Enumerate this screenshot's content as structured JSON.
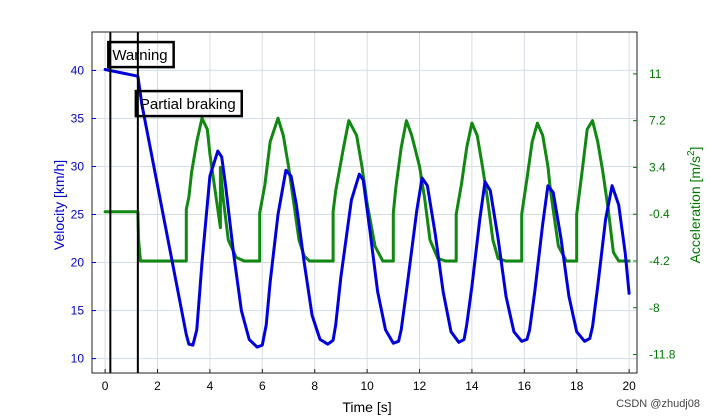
{
  "chart_data": {
    "type": "line",
    "xlabel": "Time [s]",
    "ylabel_left": "Velocity [km/h]",
    "ylabel_right_base": "Acceleration [m/s",
    "ylabel_right_sup": "2",
    "ylabel_right_tail": "]",
    "xlim": [
      -0.5,
      20.3
    ],
    "ylim_left": [
      8.5,
      44
    ],
    "ylim_right": [
      -13.3,
      14.4
    ],
    "xticks": [
      0,
      2,
      4,
      6,
      8,
      10,
      12,
      14,
      16,
      18,
      20
    ],
    "xtick_labels": [
      "0",
      "2",
      "4",
      "6",
      "8",
      "10",
      "12",
      "14",
      "16",
      "18",
      "20"
    ],
    "yticks_left": [
      10,
      15,
      20,
      25,
      30,
      35,
      40
    ],
    "ytick_labels_left": [
      "10",
      "15",
      "20",
      "25",
      "30",
      "35",
      "40"
    ],
    "yticks_right": [
      -11.8,
      -8,
      -4.2,
      -0.4,
      3.4,
      7.2,
      11
    ],
    "ytick_labels_right": [
      "-11.8",
      "-8",
      "-4.2",
      "-0.4",
      "3.4",
      "7.2",
      "11"
    ],
    "grid": true,
    "series": [
      {
        "name": "Velocity",
        "axis": "left",
        "color": "#0000dd",
        "x": [
          0,
          1.25,
          1.4,
          3.1,
          3.2,
          3.35,
          3.5,
          3.7,
          4.0,
          4.3,
          4.45,
          4.6,
          4.9,
          5.2,
          5.5,
          5.8,
          6.0,
          6.15,
          6.3,
          6.6,
          6.9,
          7.1,
          7.3,
          7.6,
          7.9,
          8.2,
          8.5,
          8.7,
          8.8,
          9.0,
          9.4,
          9.7,
          9.85,
          10.1,
          10.4,
          10.7,
          11.0,
          11.2,
          11.3,
          11.5,
          11.9,
          12.1,
          12.3,
          12.6,
          12.9,
          13.2,
          13.5,
          13.7,
          13.8,
          14.0,
          14.3,
          14.5,
          14.7,
          15.0,
          15.3,
          15.6,
          15.9,
          16.1,
          16.2,
          16.4,
          16.7,
          16.9,
          17.1,
          17.4,
          17.7,
          18.0,
          18.3,
          18.5,
          18.6,
          18.8,
          19.1,
          19.35,
          19.6,
          19.85,
          20.0
        ],
        "y": [
          40.1,
          39.4,
          36.5,
          12.5,
          11.5,
          11.4,
          13.0,
          20.0,
          29.0,
          31.6,
          31.0,
          28.0,
          21.0,
          15.0,
          12.0,
          11.2,
          11.4,
          13.5,
          18.0,
          25.0,
          29.6,
          29.0,
          26.0,
          20.0,
          14.5,
          12.0,
          11.5,
          11.9,
          13.5,
          18.5,
          26.5,
          29.2,
          28.6,
          23.5,
          17.0,
          13.0,
          11.6,
          11.8,
          13.0,
          17.0,
          25.5,
          28.8,
          28.0,
          23.0,
          17.0,
          12.8,
          11.7,
          12.0,
          13.5,
          17.5,
          24.5,
          28.4,
          27.5,
          22.5,
          16.5,
          12.8,
          11.8,
          12.0,
          13.0,
          17.0,
          24.0,
          28.0,
          27.3,
          22.5,
          16.5,
          12.8,
          11.8,
          12.1,
          13.3,
          17.5,
          24.5,
          28.0,
          26.0,
          21.0,
          16.8
        ]
      },
      {
        "name": "Acceleration",
        "axis": "right",
        "color": "#118811",
        "x": [
          0,
          1.25,
          1.28,
          1.35,
          1.4,
          3.1,
          3.1,
          3.2,
          3.3,
          3.5,
          3.7,
          3.9,
          4.0,
          4.1,
          4.3,
          4.4,
          4.4,
          4.5,
          4.7,
          5.0,
          5.3,
          5.9,
          5.9,
          6.1,
          6.3,
          6.6,
          6.8,
          7.0,
          7.2,
          7.4,
          7.6,
          7.8,
          8.1,
          8.4,
          8.7,
          8.7,
          8.8,
          9.1,
          9.3,
          9.6,
          9.8,
          10.0,
          10.3,
          10.6,
          11.0,
          11.0,
          11.1,
          11.3,
          11.5,
          11.7,
          12.0,
          12.2,
          12.4,
          12.7,
          13.0,
          13.4,
          13.4,
          13.6,
          13.8,
          14.0,
          14.2,
          14.4,
          14.6,
          14.8,
          15.0,
          15.3,
          15.6,
          15.9,
          15.9,
          16.1,
          16.3,
          16.5,
          16.7,
          16.9,
          17.0,
          17.3,
          17.6,
          18.0,
          18.0,
          18.2,
          18.4,
          18.6,
          18.8,
          19.0,
          19.2,
          19.4,
          19.6,
          19.8,
          20.0
        ],
        "y": [
          -0.2,
          -0.2,
          -2.5,
          -4.2,
          -4.2,
          -4.2,
          0.0,
          1.0,
          3.0,
          5.5,
          7.4,
          6.5,
          4.5,
          3.0,
          0.0,
          -1.5,
          3.4,
          1.0,
          -2.5,
          -3.9,
          -4.2,
          -4.2,
          -0.3,
          2.0,
          5.5,
          7.4,
          6.0,
          3.5,
          0.5,
          -2.5,
          -3.8,
          -4.2,
          -4.2,
          -4.2,
          -4.2,
          -0.2,
          1.5,
          5.0,
          7.2,
          6.0,
          3.5,
          0.5,
          -3.0,
          -4.2,
          -4.2,
          -0.3,
          1.8,
          5.0,
          7.2,
          6.0,
          3.5,
          0.8,
          -2.5,
          -4.0,
          -4.2,
          -4.2,
          -0.4,
          2.0,
          5.0,
          7.0,
          6.0,
          3.5,
          0.8,
          -2.5,
          -4.0,
          -4.2,
          -4.2,
          -4.2,
          -0.4,
          2.5,
          5.5,
          7.0,
          6.0,
          3.5,
          1.5,
          -3.0,
          -4.2,
          -4.2,
          -0.4,
          3.0,
          6.5,
          7.2,
          5.5,
          3.0,
          0.0,
          -3.5,
          -4.2,
          -4.2,
          -4.2
        ]
      }
    ],
    "markers": [
      {
        "x": 0.2,
        "label": "Warning",
        "label_anchor_y": 41.7
      },
      {
        "x": 1.25,
        "label": "Partial braking",
        "label_anchor_y": 36.6
      }
    ]
  },
  "watermark": "CSDN @zhudj08"
}
